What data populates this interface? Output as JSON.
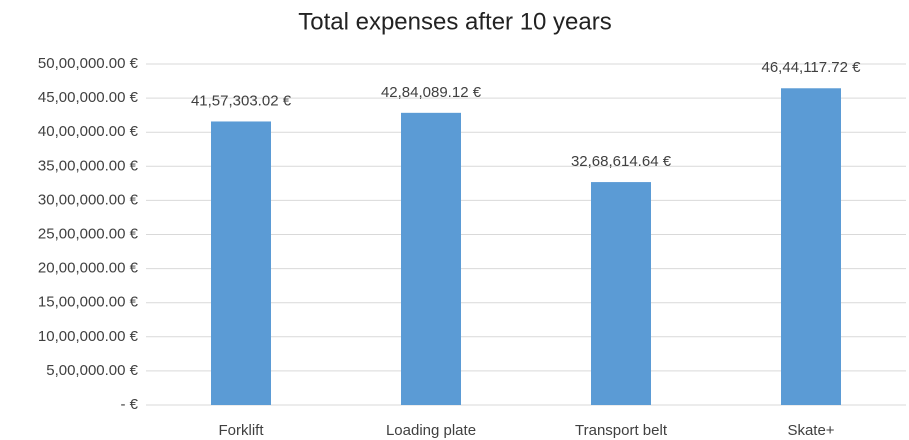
{
  "chart_data": {
    "type": "bar",
    "title": "Total expenses after 10 years",
    "categories": [
      "Forklift",
      "Loading plate",
      "Transport belt",
      "Skate+"
    ],
    "values": [
      4157303.02,
      4284089.12,
      3268614.64,
      4644117.72
    ],
    "value_labels": [
      "41,57,303.02 €",
      "42,84,089.12 €",
      "32,68,614.64 €",
      "46,44,117.72 €"
    ],
    "color": "#5b9bd5",
    "ylim": [
      0,
      5000000
    ],
    "yticks": [
      {
        "value": 0,
        "label": "-  €"
      },
      {
        "value": 500000,
        "label": "5,00,000.00 €"
      },
      {
        "value": 1000000,
        "label": "10,00,000.00 €"
      },
      {
        "value": 1500000,
        "label": "15,00,000.00 €"
      },
      {
        "value": 2000000,
        "label": "20,00,000.00 €"
      },
      {
        "value": 2500000,
        "label": "25,00,000.00 €"
      },
      {
        "value": 3000000,
        "label": "30,00,000.00 €"
      },
      {
        "value": 3500000,
        "label": "35,00,000.00 €"
      },
      {
        "value": 4000000,
        "label": "40,00,000.00 €"
      },
      {
        "value": 4500000,
        "label": "45,00,000.00 €"
      },
      {
        "value": 5000000,
        "label": "50,00,000.00 €"
      }
    ],
    "grid": true
  }
}
